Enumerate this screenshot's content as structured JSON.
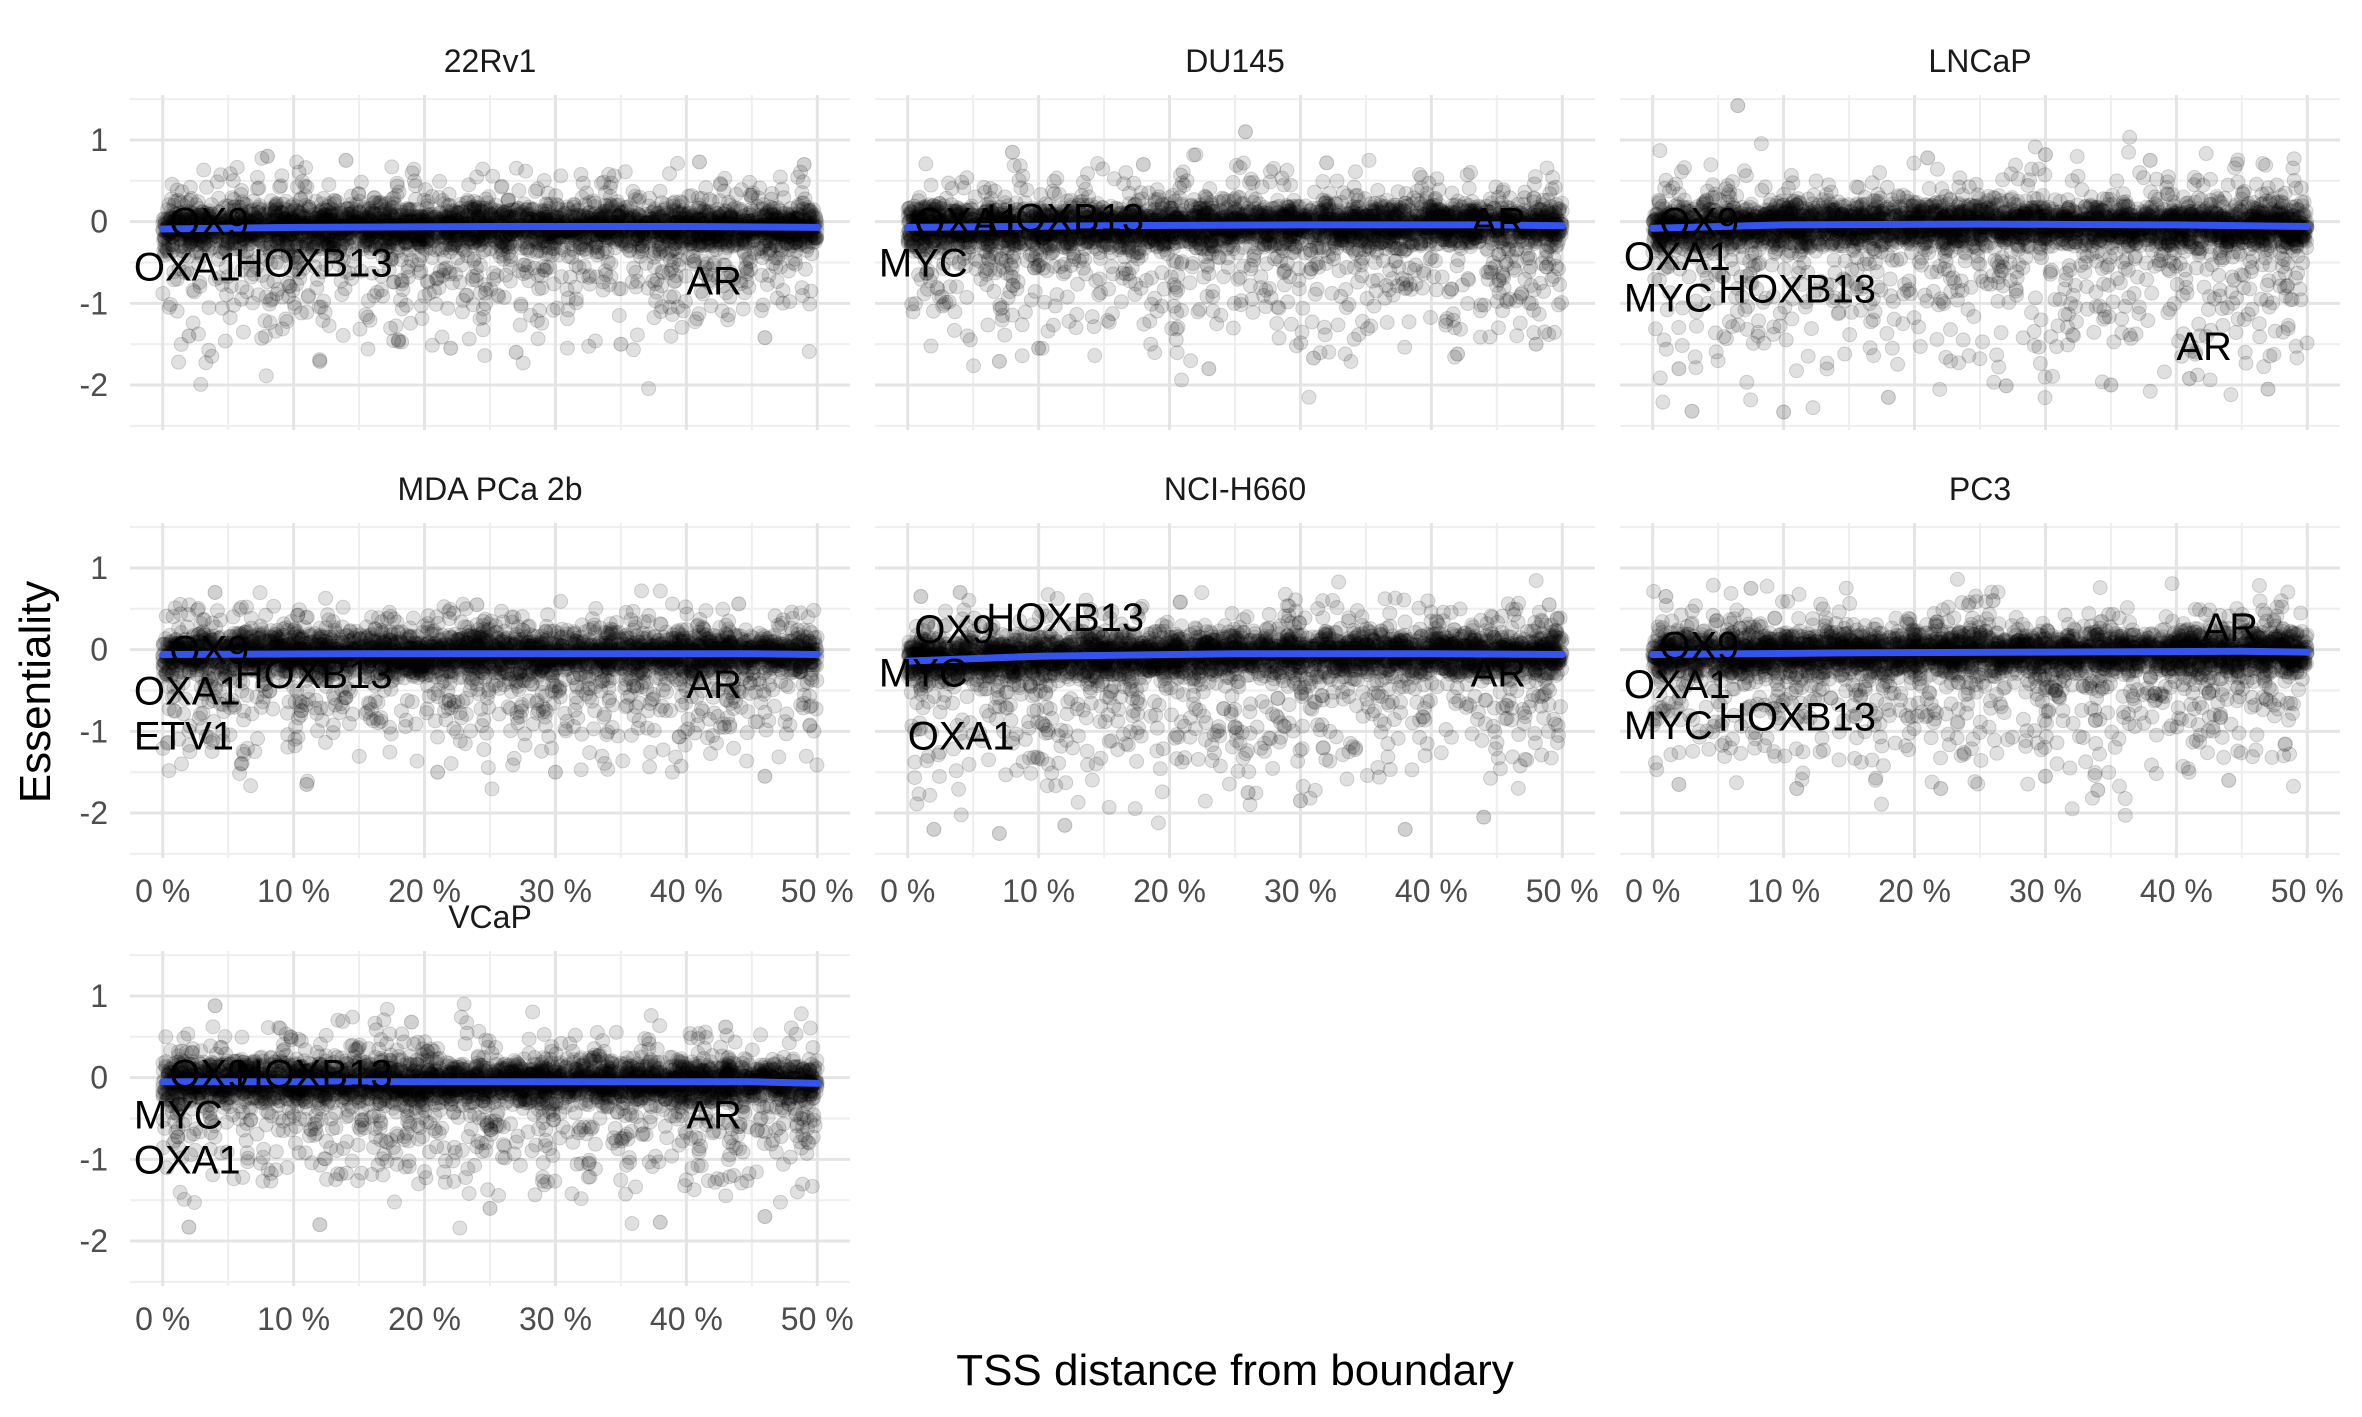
{
  "chart_data": {
    "type": "scatter",
    "xlabel": "TSS distance from boundary",
    "ylabel": "Essentiality",
    "x_ticks": [
      "0 %",
      "10 %",
      "20 %",
      "30 %",
      "40 %",
      "50 %"
    ],
    "x_tick_values": [
      0,
      10,
      20,
      30,
      40,
      50
    ],
    "y_ticks": [
      "1",
      "0",
      "-1",
      "-2"
    ],
    "y_tick_values": [
      1,
      0,
      -1,
      -2
    ],
    "xlim": [
      -2.5,
      52.5
    ],
    "ylim": [
      -2.55,
      1.55
    ],
    "grid": true,
    "point_color": "#000000",
    "point_alpha": 0.12,
    "trend_color": "#3355ee",
    "panels": [
      {
        "title": "22Rv1",
        "trend": [
          {
            "x": 0,
            "y": -0.09
          },
          {
            "x": 10,
            "y": -0.07
          },
          {
            "x": 25,
            "y": -0.06
          },
          {
            "x": 40,
            "y": -0.06
          },
          {
            "x": 50,
            "y": -0.07
          }
        ],
        "spread": {
          "top": 0.4,
          "bottom": -0.55
        },
        "outliers_high": [
          {
            "x": 8,
            "y": 0.8
          },
          {
            "x": 14,
            "y": 0.75
          },
          {
            "x": 41,
            "y": 0.73
          },
          {
            "x": 49,
            "y": 0.7
          }
        ],
        "outliers_low": [
          {
            "x": 12,
            "y": -1.71
          },
          {
            "x": 22,
            "y": -1.55
          },
          {
            "x": 27,
            "y": -1.6
          },
          {
            "x": 35,
            "y": -1.5
          },
          {
            "x": 2,
            "y": -1.4
          },
          {
            "x": 18,
            "y": -1.45
          },
          {
            "x": 46,
            "y": -1.42
          }
        ],
        "genes": [
          {
            "label": "OX9",
            "x": 0.5,
            "y": 0.0
          },
          {
            "label": "OXA1",
            "x": -2.2,
            "y": -0.55
          },
          {
            "label": "HOXB13",
            "x": 5.5,
            "y": -0.5
          },
          {
            "label": "AR",
            "x": 40,
            "y": -0.72
          }
        ]
      },
      {
        "title": "DU145",
        "trend": [
          {
            "x": 0,
            "y": -0.07
          },
          {
            "x": 15,
            "y": -0.05
          },
          {
            "x": 30,
            "y": -0.04
          },
          {
            "x": 45,
            "y": -0.04
          },
          {
            "x": 50,
            "y": -0.05
          }
        ],
        "spread": {
          "top": 0.4,
          "bottom": -0.6
        },
        "outliers_high": [
          {
            "x": 25.8,
            "y": 1.1
          },
          {
            "x": 8,
            "y": 0.85
          },
          {
            "x": 18,
            "y": 0.7
          },
          {
            "x": 32,
            "y": 0.72
          }
        ],
        "outliers_low": [
          {
            "x": 7,
            "y": -1.71
          },
          {
            "x": 23,
            "y": -1.8
          },
          {
            "x": 31,
            "y": -1.67
          },
          {
            "x": 42,
            "y": -1.62
          },
          {
            "x": 10,
            "y": -1.55
          },
          {
            "x": 48,
            "y": -1.5
          }
        ],
        "genes": [
          {
            "label": "OXA1",
            "x": 0.5,
            "y": 0.0
          },
          {
            "label": "HOXB13",
            "x": 6,
            "y": 0.05
          },
          {
            "label": "AR",
            "x": 43,
            "y": 0.0
          },
          {
            "label": "MYC",
            "x": -2.2,
            "y": -0.5
          }
        ]
      },
      {
        "title": "LNCaP",
        "trend": [
          {
            "x": 0,
            "y": -0.08
          },
          {
            "x": 10,
            "y": -0.04
          },
          {
            "x": 25,
            "y": -0.03
          },
          {
            "x": 40,
            "y": -0.04
          },
          {
            "x": 50,
            "y": -0.06
          }
        ],
        "spread": {
          "top": 0.45,
          "bottom": -0.75
        },
        "outliers_high": [
          {
            "x": 6.5,
            "y": 1.42
          },
          {
            "x": 30,
            "y": 0.82
          },
          {
            "x": 38,
            "y": 0.75
          },
          {
            "x": 21,
            "y": 0.78
          }
        ],
        "outliers_low": [
          {
            "x": 10,
            "y": -2.33
          },
          {
            "x": 18,
            "y": -2.15
          },
          {
            "x": 27,
            "y": -2.01
          },
          {
            "x": 35,
            "y": -2.0
          },
          {
            "x": 47,
            "y": -2.05
          },
          {
            "x": 3,
            "y": -2.32
          },
          {
            "x": 41,
            "y": -1.92
          },
          {
            "x": 2,
            "y": -1.8
          }
        ],
        "genes": [
          {
            "label": "OX9",
            "x": 0.5,
            "y": 0.0
          },
          {
            "label": "OXA1",
            "x": -2.2,
            "y": -0.42
          },
          {
            "label": "MYC",
            "x": -2.2,
            "y": -0.93
          },
          {
            "label": "HOXB13",
            "x": 5,
            "y": -0.82
          },
          {
            "label": "AR",
            "x": 40,
            "y": -1.52
          }
        ]
      },
      {
        "title": "MDA PCa 2b",
        "trend": [
          {
            "x": 0,
            "y": -0.06
          },
          {
            "x": 15,
            "y": -0.05
          },
          {
            "x": 30,
            "y": -0.05
          },
          {
            "x": 45,
            "y": -0.05
          },
          {
            "x": 50,
            "y": -0.06
          }
        ],
        "spread": {
          "top": 0.35,
          "bottom": -0.5
        },
        "outliers_high": [
          {
            "x": 4,
            "y": 0.7
          },
          {
            "x": 24,
            "y": 0.55
          },
          {
            "x": 44,
            "y": 0.56
          }
        ],
        "outliers_low": [
          {
            "x": 11,
            "y": -1.65
          },
          {
            "x": 21,
            "y": -1.5
          },
          {
            "x": 30,
            "y": -1.5
          },
          {
            "x": 46,
            "y": -1.55
          },
          {
            "x": 6,
            "y": -1.4
          }
        ],
        "genes": [
          {
            "label": "OX9",
            "x": 0.5,
            "y": 0.0
          },
          {
            "label": "HOXB13",
            "x": 5.5,
            "y": -0.3
          },
          {
            "label": "OXA1",
            "x": -2.2,
            "y": -0.5
          },
          {
            "label": "ETV1",
            "x": -2.2,
            "y": -1.05
          },
          {
            "label": "AR",
            "x": 40,
            "y": -0.42
          }
        ]
      },
      {
        "title": "NCI-H660",
        "trend": [
          {
            "x": 0,
            "y": -0.14
          },
          {
            "x": 10,
            "y": -0.08
          },
          {
            "x": 25,
            "y": -0.05
          },
          {
            "x": 40,
            "y": -0.05
          },
          {
            "x": 50,
            "y": -0.06
          }
        ],
        "spread": {
          "top": 0.35,
          "bottom": -0.65
        },
        "outliers_high": [
          {
            "x": 4,
            "y": 0.7
          },
          {
            "x": 1,
            "y": 0.65
          },
          {
            "x": 49,
            "y": 0.55
          }
        ],
        "outliers_low": [
          {
            "x": 7,
            "y": -2.25
          },
          {
            "x": 2,
            "y": -2.2
          },
          {
            "x": 38,
            "y": -2.2
          },
          {
            "x": 44,
            "y": -2.05
          },
          {
            "x": 12,
            "y": -2.15
          },
          {
            "x": 30,
            "y": -1.85
          },
          {
            "x": 26,
            "y": -1.75
          }
        ],
        "genes": [
          {
            "label": "OX9",
            "x": 0.5,
            "y": 0.25
          },
          {
            "label": "HOXB13",
            "x": 6,
            "y": 0.4
          },
          {
            "label": "MYC",
            "x": -2.2,
            "y": -0.28
          },
          {
            "label": "AR",
            "x": 43,
            "y": -0.28
          },
          {
            "label": "OXA1",
            "x": 0.0,
            "y": -1.05
          }
        ]
      },
      {
        "title": "PC3",
        "trend": [
          {
            "x": 0,
            "y": -0.06
          },
          {
            "x": 15,
            "y": -0.04
          },
          {
            "x": 30,
            "y": -0.03
          },
          {
            "x": 45,
            "y": -0.02
          },
          {
            "x": 50,
            "y": -0.03
          }
        ],
        "spread": {
          "top": 0.4,
          "bottom": -0.6
        },
        "outliers_high": [
          {
            "x": 1,
            "y": 0.65
          },
          {
            "x": 7.5,
            "y": 0.75
          },
          {
            "x": 26,
            "y": 0.6
          }
        ],
        "outliers_low": [
          {
            "x": 2,
            "y": -1.65
          },
          {
            "x": 11,
            "y": -1.7
          },
          {
            "x": 22,
            "y": -1.7
          },
          {
            "x": 34,
            "y": -1.72
          },
          {
            "x": 44,
            "y": -1.6
          },
          {
            "x": 30,
            "y": -1.55
          }
        ],
        "genes": [
          {
            "label": "OX9",
            "x": 0.5,
            "y": 0.05
          },
          {
            "label": "OXA1",
            "x": -2.2,
            "y": -0.42
          },
          {
            "label": "MYC",
            "x": -2.2,
            "y": -0.92
          },
          {
            "label": "HOXB13",
            "x": 5,
            "y": -0.82
          },
          {
            "label": "AR",
            "x": 42,
            "y": 0.28
          }
        ]
      },
      {
        "title": "VCaP",
        "trend": [
          {
            "x": 0,
            "y": -0.05
          },
          {
            "x": 15,
            "y": -0.05
          },
          {
            "x": 30,
            "y": -0.05
          },
          {
            "x": 45,
            "y": -0.05
          },
          {
            "x": 50,
            "y": -0.07
          }
        ],
        "spread": {
          "top": 0.4,
          "bottom": -0.55
        },
        "outliers_high": [
          {
            "x": 4,
            "y": 0.88
          },
          {
            "x": 19,
            "y": 0.68
          },
          {
            "x": 43,
            "y": 0.62
          }
        ],
        "outliers_low": [
          {
            "x": 2,
            "y": -1.83
          },
          {
            "x": 12,
            "y": -1.8
          },
          {
            "x": 38,
            "y": -1.77
          },
          {
            "x": 25,
            "y": -1.6
          },
          {
            "x": 46,
            "y": -1.7
          }
        ],
        "genes": [
          {
            "label": "OX9",
            "x": 0.5,
            "y": 0.05
          },
          {
            "label": "HOXB13",
            "x": 5.5,
            "y": 0.05
          },
          {
            "label": "MYC",
            "x": -2.2,
            "y": -0.45
          },
          {
            "label": "AR",
            "x": 40,
            "y": -0.45
          },
          {
            "label": "OXA1",
            "x": -2.2,
            "y": -1.0
          }
        ]
      }
    ]
  }
}
